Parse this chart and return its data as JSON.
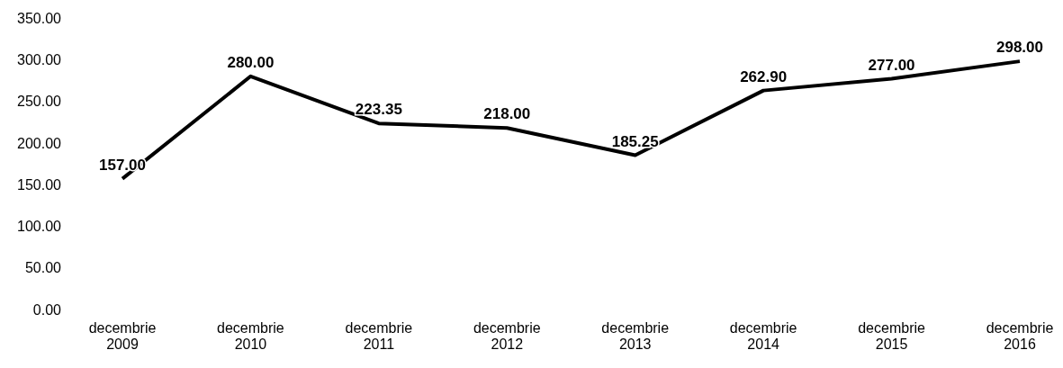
{
  "chart_data": {
    "type": "line",
    "categories": [
      "decembrie 2009",
      "decembrie 2010",
      "decembrie 2011",
      "decembrie 2012",
      "decembrie 2013",
      "decembrie 2014",
      "decembrie 2015",
      "decembrie 2016"
    ],
    "values": [
      157,
      280,
      223.35,
      218,
      185.25,
      262.9,
      277,
      298
    ],
    "value_labels": [
      "157.00",
      "280.00",
      "223.35",
      "218.00",
      "185.25",
      "262.90",
      "277.00",
      "298.00"
    ],
    "color": "#000000",
    "ylim": [
      0,
      350
    ],
    "yticks": [
      {
        "value": 0,
        "label": "0.00"
      },
      {
        "value": 50,
        "label": "50.00"
      },
      {
        "value": 100,
        "label": "100.00"
      },
      {
        "value": 150,
        "label": "150.00"
      },
      {
        "value": 200,
        "label": "200.00"
      },
      {
        "value": 250,
        "label": "250.00"
      },
      {
        "value": 300,
        "label": "300.00"
      },
      {
        "value": 350,
        "label": "350.00"
      }
    ],
    "grid": false,
    "legend": false,
    "marker": "none",
    "line_style": "solid"
  }
}
